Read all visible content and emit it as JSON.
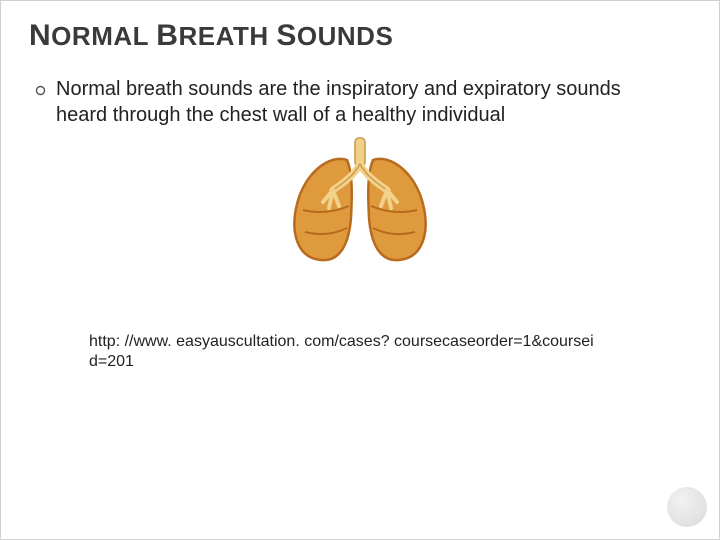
{
  "title": {
    "letters": [
      {
        "t": "N",
        "big": true
      },
      {
        "t": "O"
      },
      {
        "t": "R"
      },
      {
        "t": "M"
      },
      {
        "t": "A"
      },
      {
        "t": "L"
      },
      {
        "t": " "
      },
      {
        "t": "B",
        "big": true
      },
      {
        "t": "R"
      },
      {
        "t": "E"
      },
      {
        "t": "A"
      },
      {
        "t": "T"
      },
      {
        "t": "H"
      },
      {
        "t": " "
      },
      {
        "t": "S",
        "big": true
      },
      {
        "t": "O"
      },
      {
        "t": "U"
      },
      {
        "t": "N"
      },
      {
        "t": "D"
      },
      {
        "t": "S"
      }
    ]
  },
  "bullet": {
    "text": "Normal breath sounds are the inspiratory and expiratory sounds heard through the chest wall of a healthy individual"
  },
  "url": "http: //www. easyauscultation. com/cases? coursecaseorder=1&coursei d=201",
  "colors": {
    "lung_fill": "#e09a3e",
    "lung_outline": "#b86a1e",
    "bronchi": "#f2d28a",
    "bronchi_dark": "#c99a4a",
    "title_color": "#3a3a3a",
    "text_color": "#222222",
    "circle_light": "#f2f2f2",
    "circle_dark": "#d9d9d9"
  }
}
